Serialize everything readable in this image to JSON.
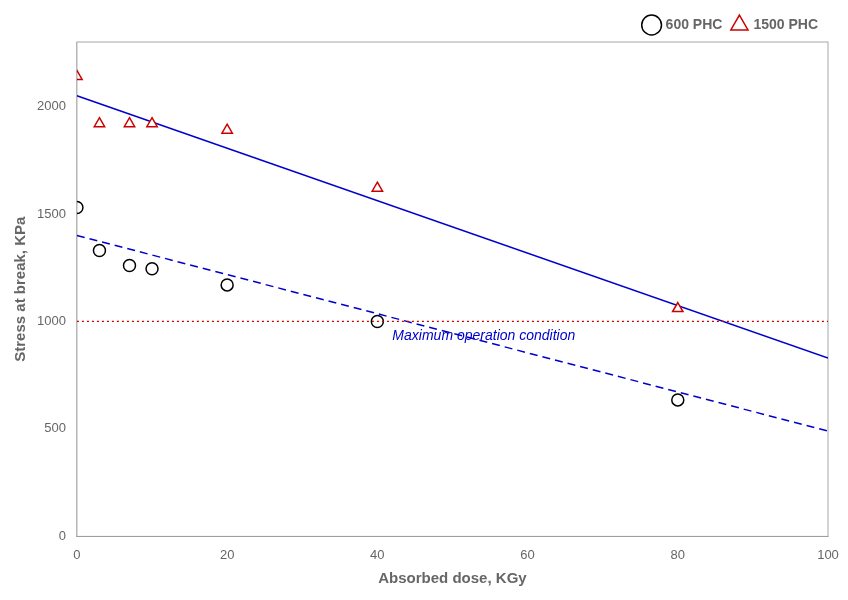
{
  "chart_data": {
    "type": "scatter",
    "xlabel": "Absorbed dose, KGy",
    "ylabel": "Stress at break, KPa",
    "xlim": [
      0,
      100
    ],
    "ylim": [
      0,
      2300
    ],
    "xticks": [
      0,
      20,
      40,
      60,
      80,
      100
    ],
    "yticks": [
      0,
      500,
      1000,
      1500,
      2000
    ],
    "grid": false,
    "legend": "upper right",
    "series": [
      {
        "type": "line",
        "line_style": "dashed",
        "color": "#0000CC",
        "x": [
          0,
          100
        ],
        "values": [
          1400,
          490
        ]
      },
      {
        "type": "line",
        "line_style": "solid",
        "color": "#0000CC",
        "x": [
          0,
          100
        ],
        "values": [
          2050,
          830
        ]
      },
      {
        "name": "600 PHC",
        "type": "scatter",
        "marker": "circle",
        "color": "black",
        "x": [
          0,
          3,
          7,
          10,
          20,
          40,
          80
        ],
        "values": [
          1530,
          1330,
          1260,
          1245,
          1170,
          1000,
          635
        ]
      },
      {
        "name": "1500 PHC",
        "type": "scatter",
        "marker": "triangle",
        "color": "#CC0000",
        "x": [
          0,
          3,
          7,
          10,
          20,
          40,
          80
        ],
        "values": [
          2140,
          1920,
          1920,
          1920,
          1890,
          1620,
          1060
        ]
      }
    ],
    "hlines": [
      {
        "value": 1000,
        "color": "#CC0000",
        "line_style": "dotted"
      }
    ],
    "annotations": [
      {
        "text": "Maximum operation condition",
        "x": 42,
        "y": 975,
        "color": "#0000CC"
      }
    ]
  }
}
